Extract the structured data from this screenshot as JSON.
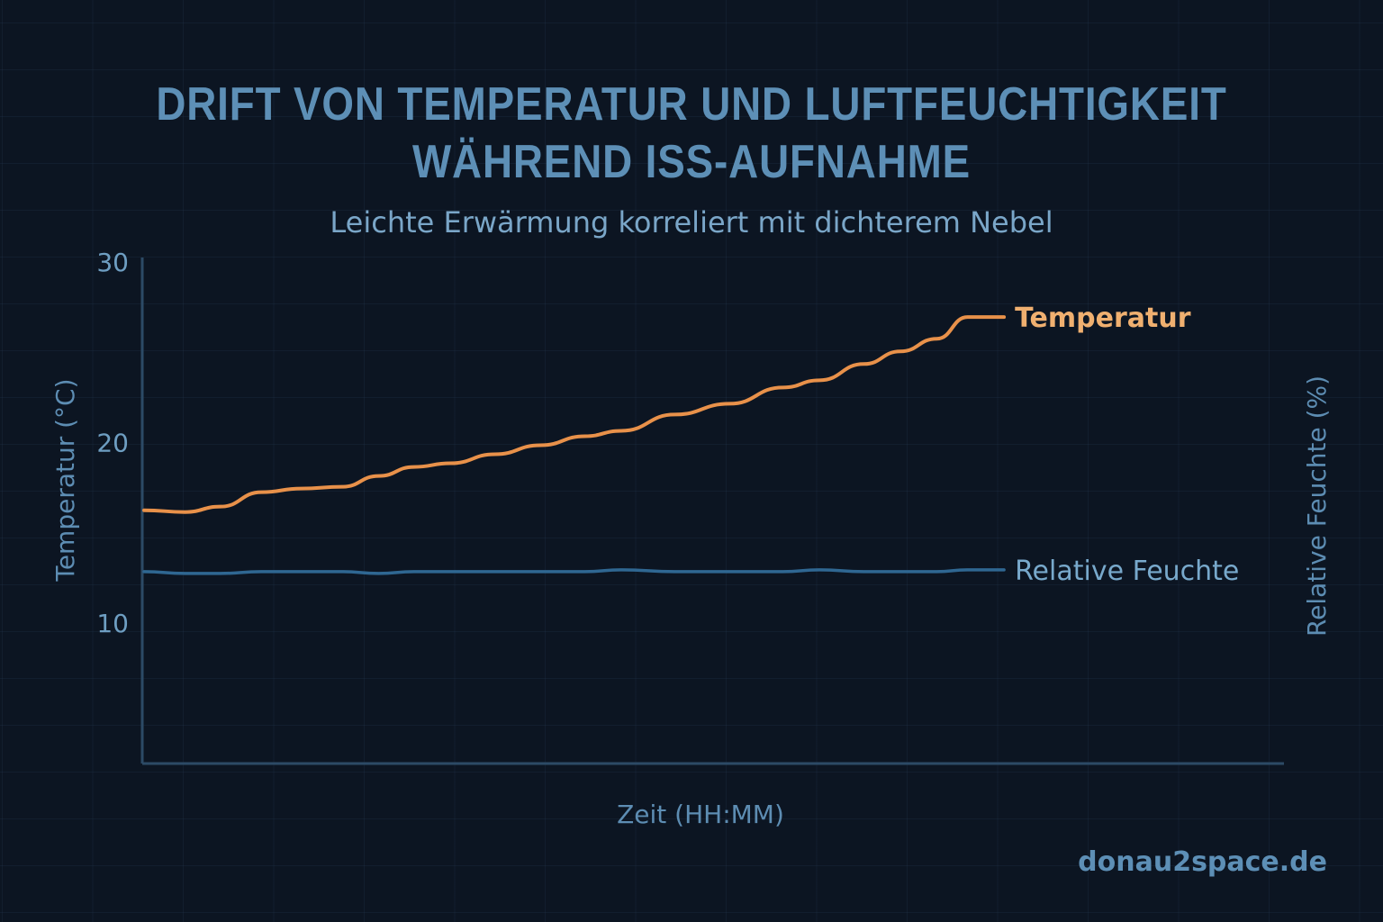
{
  "chart_data": {
    "type": "line",
    "title": "DRIFT VON TEMPERATUR UND LUFTFEUCHTIGKEIT WÄHREND ISS-AUFNAHME",
    "title_lines": [
      "DRIFT VON TEMPERATUR UND LUFTFEUCHTIGKEIT",
      "WÄHREND ISS-AUFNAHME"
    ],
    "subtitle": "Leichte Erwärmung korreliert mit dichterem Nebel",
    "xlabel": "Zeit (HH:MM)",
    "ylabel": "Temperatur (°C)",
    "ylabel_right": "Relative Feuchte (%)",
    "ylim": [
      2.2,
      30
    ],
    "xlim": [
      0,
      100
    ],
    "yticks": [
      "30",
      "20",
      "10"
    ],
    "ytick_values": [
      30,
      20,
      10
    ],
    "grid": true,
    "legend": "inline-right-end",
    "x": [
      0,
      3.6,
      6.7,
      10.3,
      13.8,
      17.4,
      20.6,
      23.7,
      26.9,
      30.8,
      34.8,
      38.7,
      41.9,
      46.6,
      51.4,
      56.1,
      59.3,
      63.2,
      66.4,
      69.6,
      72.3,
      75.5
    ],
    "series": [
      {
        "name": "Temperatur",
        "color": "#e8914a",
        "label_color": "#f0b070",
        "values": [
          16.2,
          16.1,
          16.4,
          17.2,
          17.4,
          17.5,
          18.1,
          18.6,
          18.8,
          19.3,
          19.8,
          20.3,
          20.6,
          21.5,
          22.1,
          23.0,
          23.4,
          24.3,
          25.0,
          25.7,
          26.9,
          26.9
        ]
      },
      {
        "name": "Relative Feuchte",
        "color": "#2f6792",
        "label_color": "#78a9cc",
        "values": [
          12.8,
          12.7,
          12.7,
          12.8,
          12.8,
          12.8,
          12.7,
          12.8,
          12.8,
          12.8,
          12.8,
          12.8,
          12.9,
          12.8,
          12.8,
          12.8,
          12.9,
          12.8,
          12.8,
          12.8,
          12.9,
          12.9
        ]
      }
    ]
  },
  "footer": "donau2space.de"
}
